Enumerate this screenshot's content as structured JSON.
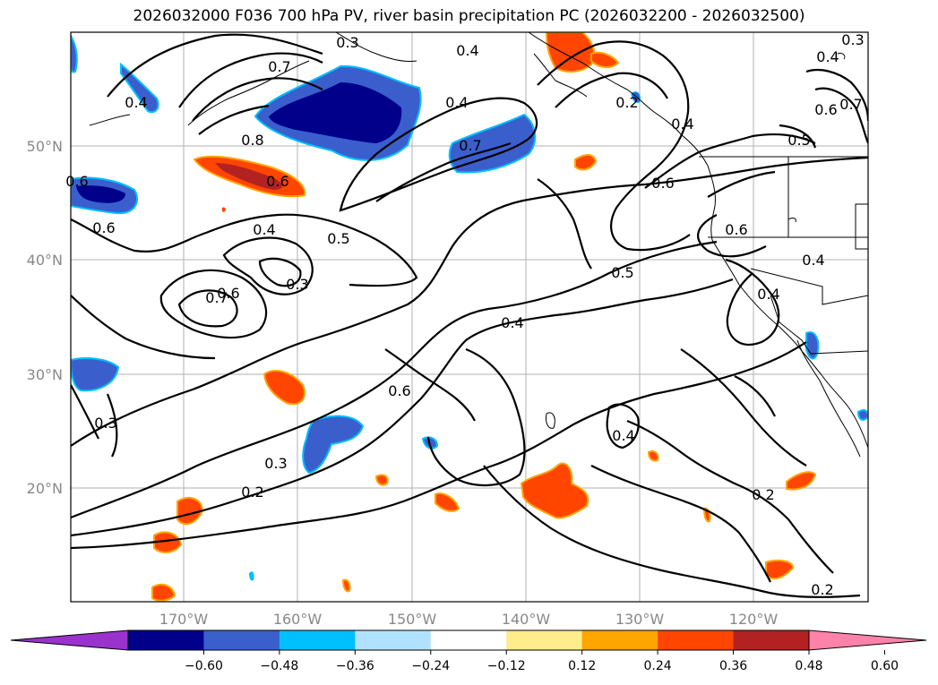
{
  "title": "2026032000 F036 700 hPa PV, river basin precipitation PC (2026032200 - 2026032500)",
  "map": {
    "lat_ticks": [
      {
        "label": "50°N"
      },
      {
        "label": "40°N"
      },
      {
        "label": "30°N"
      },
      {
        "label": "20°N"
      }
    ],
    "lon_ticks": [
      {
        "label": "170°W"
      },
      {
        "label": "160°W"
      },
      {
        "label": "150°W"
      },
      {
        "label": "140°W"
      },
      {
        "label": "130°W"
      },
      {
        "label": "120°W"
      }
    ],
    "contour_labels": [
      "0.3",
      "0.7",
      "0.4",
      "0.4",
      "0.8",
      "0.4",
      "0.6",
      "0.6",
      "0.4",
      "0.5",
      "0.3",
      "0.6",
      "0.7",
      "0.6",
      "0.6",
      "0.7",
      "0.5",
      "0.4",
      "0.6",
      "0.3",
      "0.4",
      "0.2",
      "0.3",
      "0.2",
      "0.4",
      "0.3",
      "0.4",
      "0.6",
      "0.7",
      "0.5",
      "0.6",
      "0.2",
      "0.2",
      "0.4",
      "0.4"
    ]
  },
  "colorbar": {
    "ticks": [
      "−0.60",
      "−0.48",
      "−0.36",
      "−0.24",
      "−0.12",
      "0.12",
      "0.24",
      "0.36",
      "0.48",
      "0.60"
    ],
    "colors": [
      "#9a32cd",
      "#00008b",
      "#3a5fcd",
      "#00bfff",
      "#b0e2ff",
      "#ffffff",
      "#ffec8b",
      "#ffa500",
      "#ff4500",
      "#b22222",
      "#ff82ab"
    ]
  }
}
